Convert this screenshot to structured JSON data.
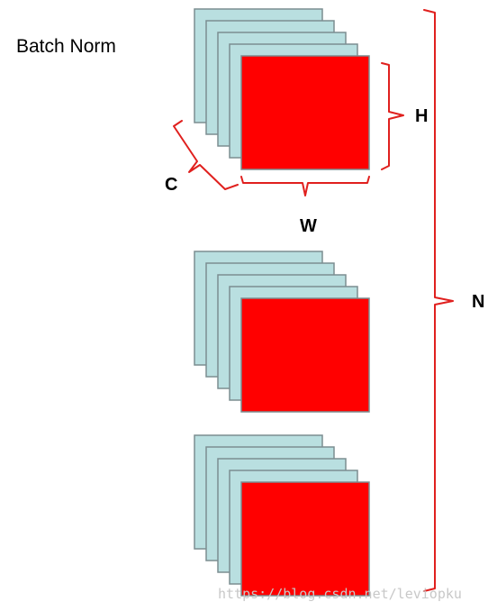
{
  "title": "Batch Norm",
  "labels": {
    "channels": "C",
    "height": "H",
    "width": "W",
    "batch": "N"
  },
  "watermark": "https://blog.csdn.net/leviopku",
  "stacks": {
    "count": 3,
    "layers_per_stack": 5
  },
  "colors": {
    "background_plane": "#b9dfe0",
    "front_plane": "#ff0000",
    "plane_border": "#7c8d91",
    "bracket": "#e0201e",
    "text": "#000000"
  }
}
